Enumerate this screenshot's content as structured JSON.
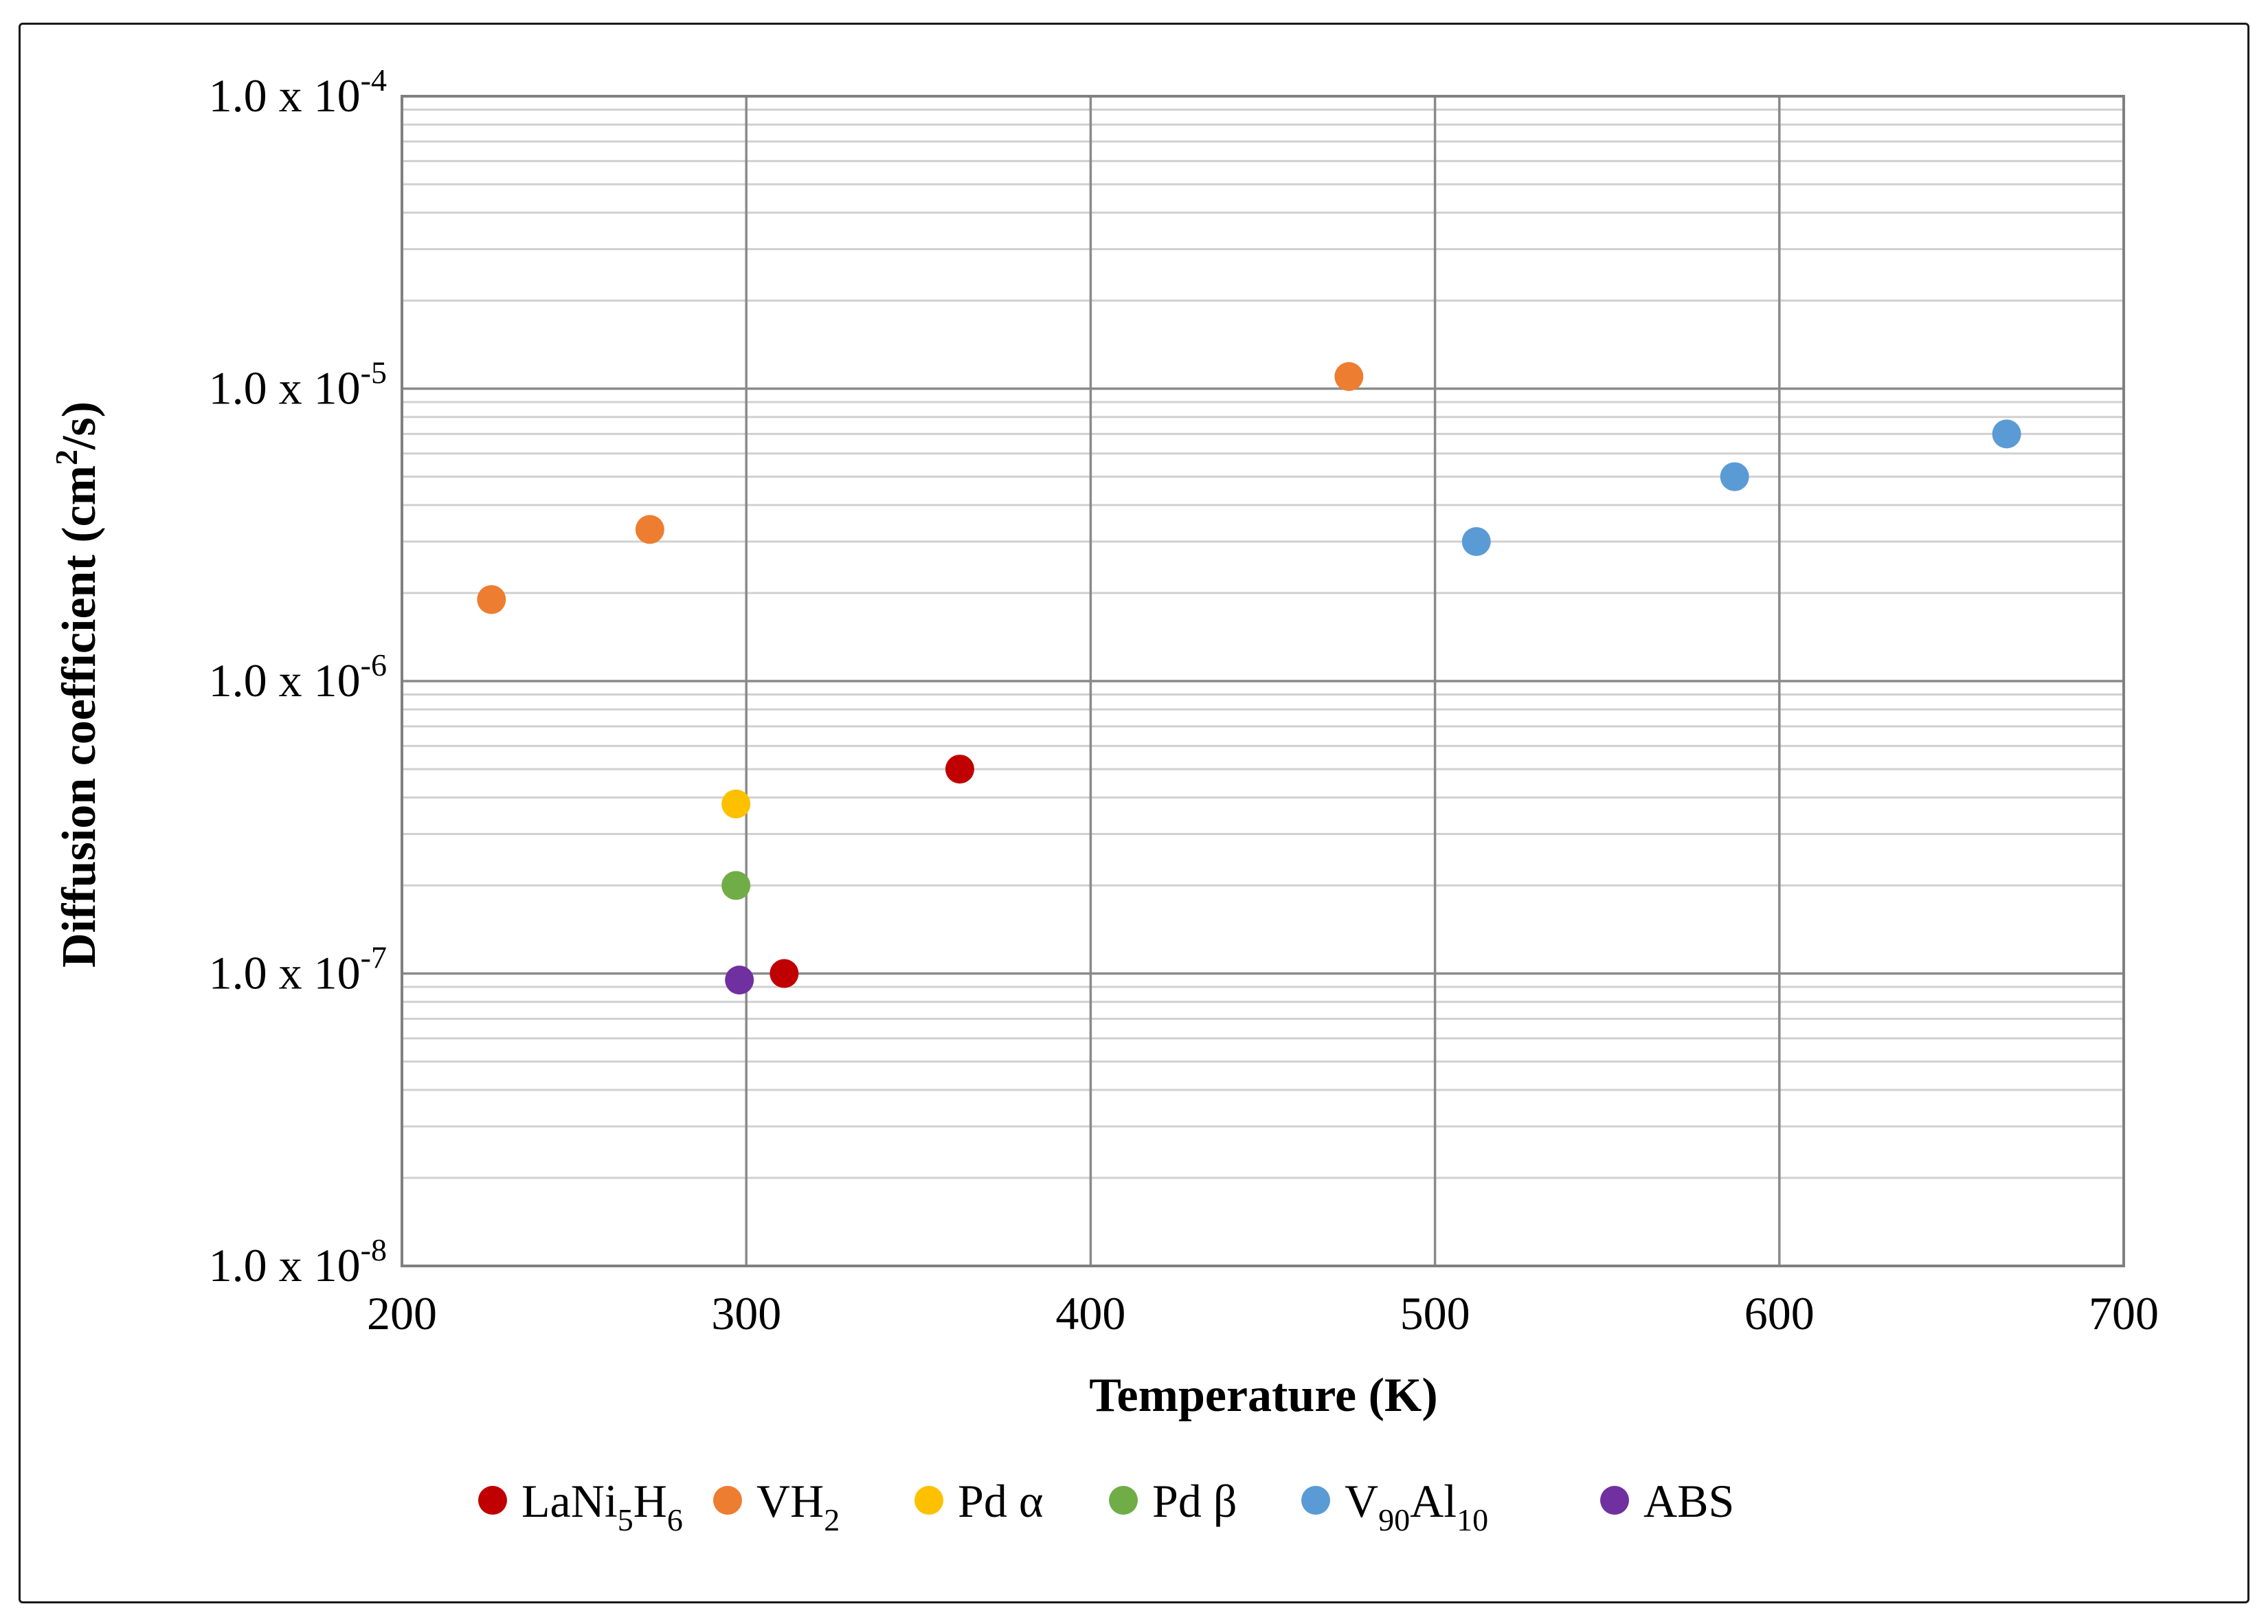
{
  "chart_data": {
    "type": "scatter",
    "xlabel": "Temperature (K)",
    "ylabel": "Diffusion coefficient (cm²/s)",
    "xlim": [
      200,
      700
    ],
    "ylim": [
      1e-08,
      0.0001
    ],
    "yscale": "log",
    "x_ticks": [
      200,
      300,
      400,
      500,
      600,
      700
    ],
    "x_tick_labels": [
      "200",
      "300",
      "400",
      "500",
      "600",
      "700"
    ],
    "y_ticks": [
      1e-08,
      1e-07,
      1e-06,
      1e-05,
      0.0001
    ],
    "y_tick_labels": [
      {
        "mantissa": "1.0 x 10",
        "exponent": "-8"
      },
      {
        "mantissa": "1.0 x 10",
        "exponent": "-7"
      },
      {
        "mantissa": "1.0 x 10",
        "exponent": "-6"
      },
      {
        "mantissa": "1.0 x 10",
        "exponent": "-5"
      },
      {
        "mantissa": "1.0 x 10",
        "exponent": "-4"
      }
    ],
    "grid": true,
    "legend_position": "bottom",
    "series": [
      {
        "name": "LaNi5H6",
        "color": "#c00000",
        "points": [
          {
            "x": 311,
            "y": 1e-07
          },
          {
            "x": 362,
            "y": 5e-07
          }
        ]
      },
      {
        "name": "VH2",
        "color": "#ed7d31",
        "points": [
          {
            "x": 226,
            "y": 1.9e-06
          },
          {
            "x": 272,
            "y": 3.3e-06
          },
          {
            "x": 475,
            "y": 1.1e-05
          }
        ]
      },
      {
        "name": "Pd α",
        "color": "#ffc000",
        "points": [
          {
            "x": 297,
            "y": 3.8e-07
          }
        ]
      },
      {
        "name": "Pd β",
        "color": "#70ad47",
        "points": [
          {
            "x": 297,
            "y": 2e-07
          }
        ]
      },
      {
        "name": "V90Al10",
        "color": "#5b9bd5",
        "points": [
          {
            "x": 512,
            "y": 3e-06
          },
          {
            "x": 587,
            "y": 5e-06
          },
          {
            "x": 666,
            "y": 7e-06
          }
        ]
      },
      {
        "name": "ABS",
        "color": "#7030a0",
        "points": [
          {
            "x": 298,
            "y": 9.5e-08
          }
        ]
      }
    ],
    "legend": [
      {
        "parts": [
          {
            "t": "LaNi"
          },
          {
            "t": "5",
            "sub": true
          },
          {
            "t": "H"
          },
          {
            "t": "6",
            "sub": true
          }
        ]
      },
      {
        "parts": [
          {
            "t": "VH"
          },
          {
            "t": "2",
            "sub": true
          }
        ]
      },
      {
        "parts": [
          {
            "t": "Pd α"
          }
        ]
      },
      {
        "parts": [
          {
            "t": "Pd β"
          }
        ]
      },
      {
        "parts": [
          {
            "t": "V"
          },
          {
            "t": "90",
            "sub": true
          },
          {
            "t": "Al"
          },
          {
            "t": "10",
            "sub": true
          }
        ]
      },
      {
        "parts": [
          {
            "t": "ABS"
          }
        ]
      }
    ]
  }
}
